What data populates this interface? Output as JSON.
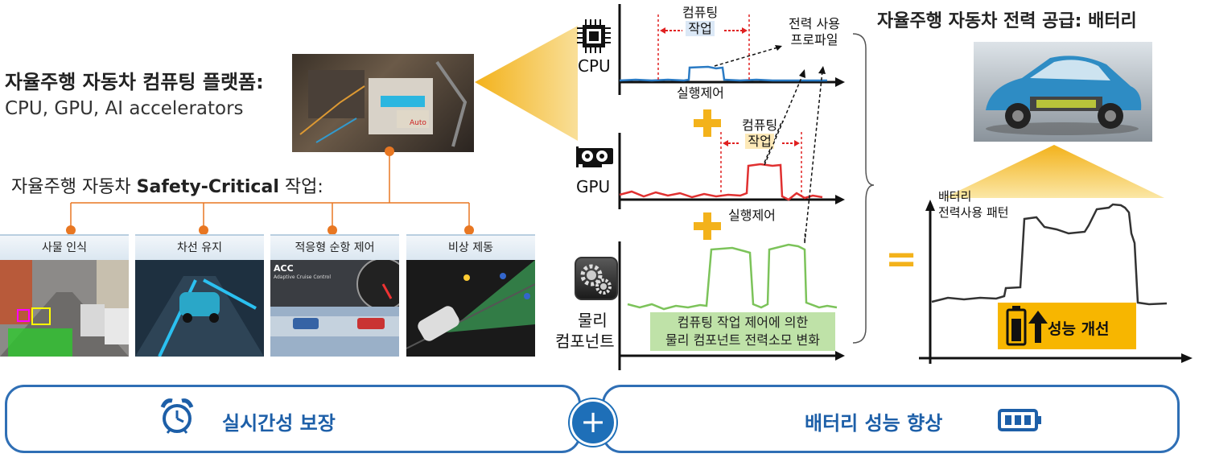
{
  "left": {
    "platform_title": "자율주행 자동차 컴퓨팅 플랫폼:",
    "platform_sub": "CPU, GPU, AI accelerators",
    "safety_prefix": "자율주행 자동차 ",
    "safety_bold": "Safety-Critical",
    "safety_suffix": " 작업:",
    "tasks": [
      "사물 인식",
      "차선 유지",
      "적응형 순항 제어",
      "비상 제동"
    ],
    "acc_label": "ACC",
    "acc_sub": "Adaptive Cruise Control"
  },
  "middle": {
    "cpu_label": "CPU",
    "gpu_label": "GPU",
    "phys_label_1": "물리",
    "phys_label_2": "컴포넌트",
    "compute_1": "컴퓨팅",
    "compute_2": "작업",
    "control": "실행제어",
    "profile_1": "전력 사용",
    "profile_2": "프로파일",
    "phys_note_1": "컴퓨팅 작업 제어에 의한",
    "phys_note_2": "물리 컴포넌트 전력소모 변화"
  },
  "right": {
    "title": "자율주행 자동차 전력 공급: 배터리",
    "pattern_1": "배터리",
    "pattern_2": "전력사용 패턴",
    "perf": "성능 개선",
    "equals": "="
  },
  "bottom": {
    "left_text": "실시간성 보장",
    "right_text": "배터리 성능 향상",
    "plus": "+"
  },
  "colors": {
    "accent_blue": "#2f6fb5",
    "orange": "#f3b21b",
    "cpu_line": "#2b7bc4",
    "gpu_line": "#e03030",
    "phys_line": "#7cc35a",
    "battery_yellow": "#f7b600"
  }
}
